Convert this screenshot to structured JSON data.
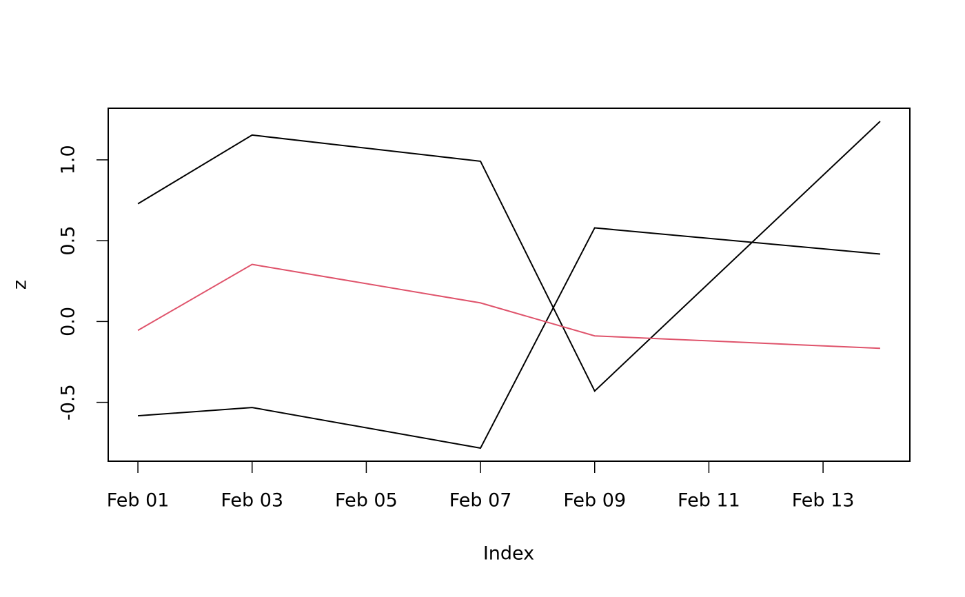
{
  "chart_data": {
    "type": "line",
    "x_label": "Index",
    "y_label": "z",
    "x": [
      1,
      3,
      7,
      9,
      14
    ],
    "series": [
      {
        "color": "#000000",
        "values": [
          0.728,
          1.153,
          0.991,
          -0.43,
          1.238
        ]
      },
      {
        "color": "#000000",
        "values": [
          -0.583,
          -0.532,
          -0.783,
          0.579,
          0.417
        ]
      },
      {
        "color": "#DF536B",
        "values": [
          -0.055,
          0.353,
          0.115,
          -0.089,
          -0.166
        ]
      }
    ],
    "xlim": [
      0.48,
      14.52
    ],
    "xticks": [
      {
        "value": 1,
        "label": "Feb 01"
      },
      {
        "value": 3,
        "label": "Feb 03"
      },
      {
        "value": 5,
        "label": "Feb 05"
      },
      {
        "value": 7,
        "label": "Feb 07"
      },
      {
        "value": 9,
        "label": "Feb 09"
      },
      {
        "value": 11,
        "label": "Feb 11"
      },
      {
        "value": 13,
        "label": "Feb 13"
      }
    ],
    "ylim": [
      -0.864,
      1.319
    ],
    "yticks": [
      -0.5,
      {
        "value": 0,
        "label": "0.0"
      },
      0.5,
      {
        "value": 1,
        "label": "1.0"
      }
    ],
    "grid": false
  }
}
